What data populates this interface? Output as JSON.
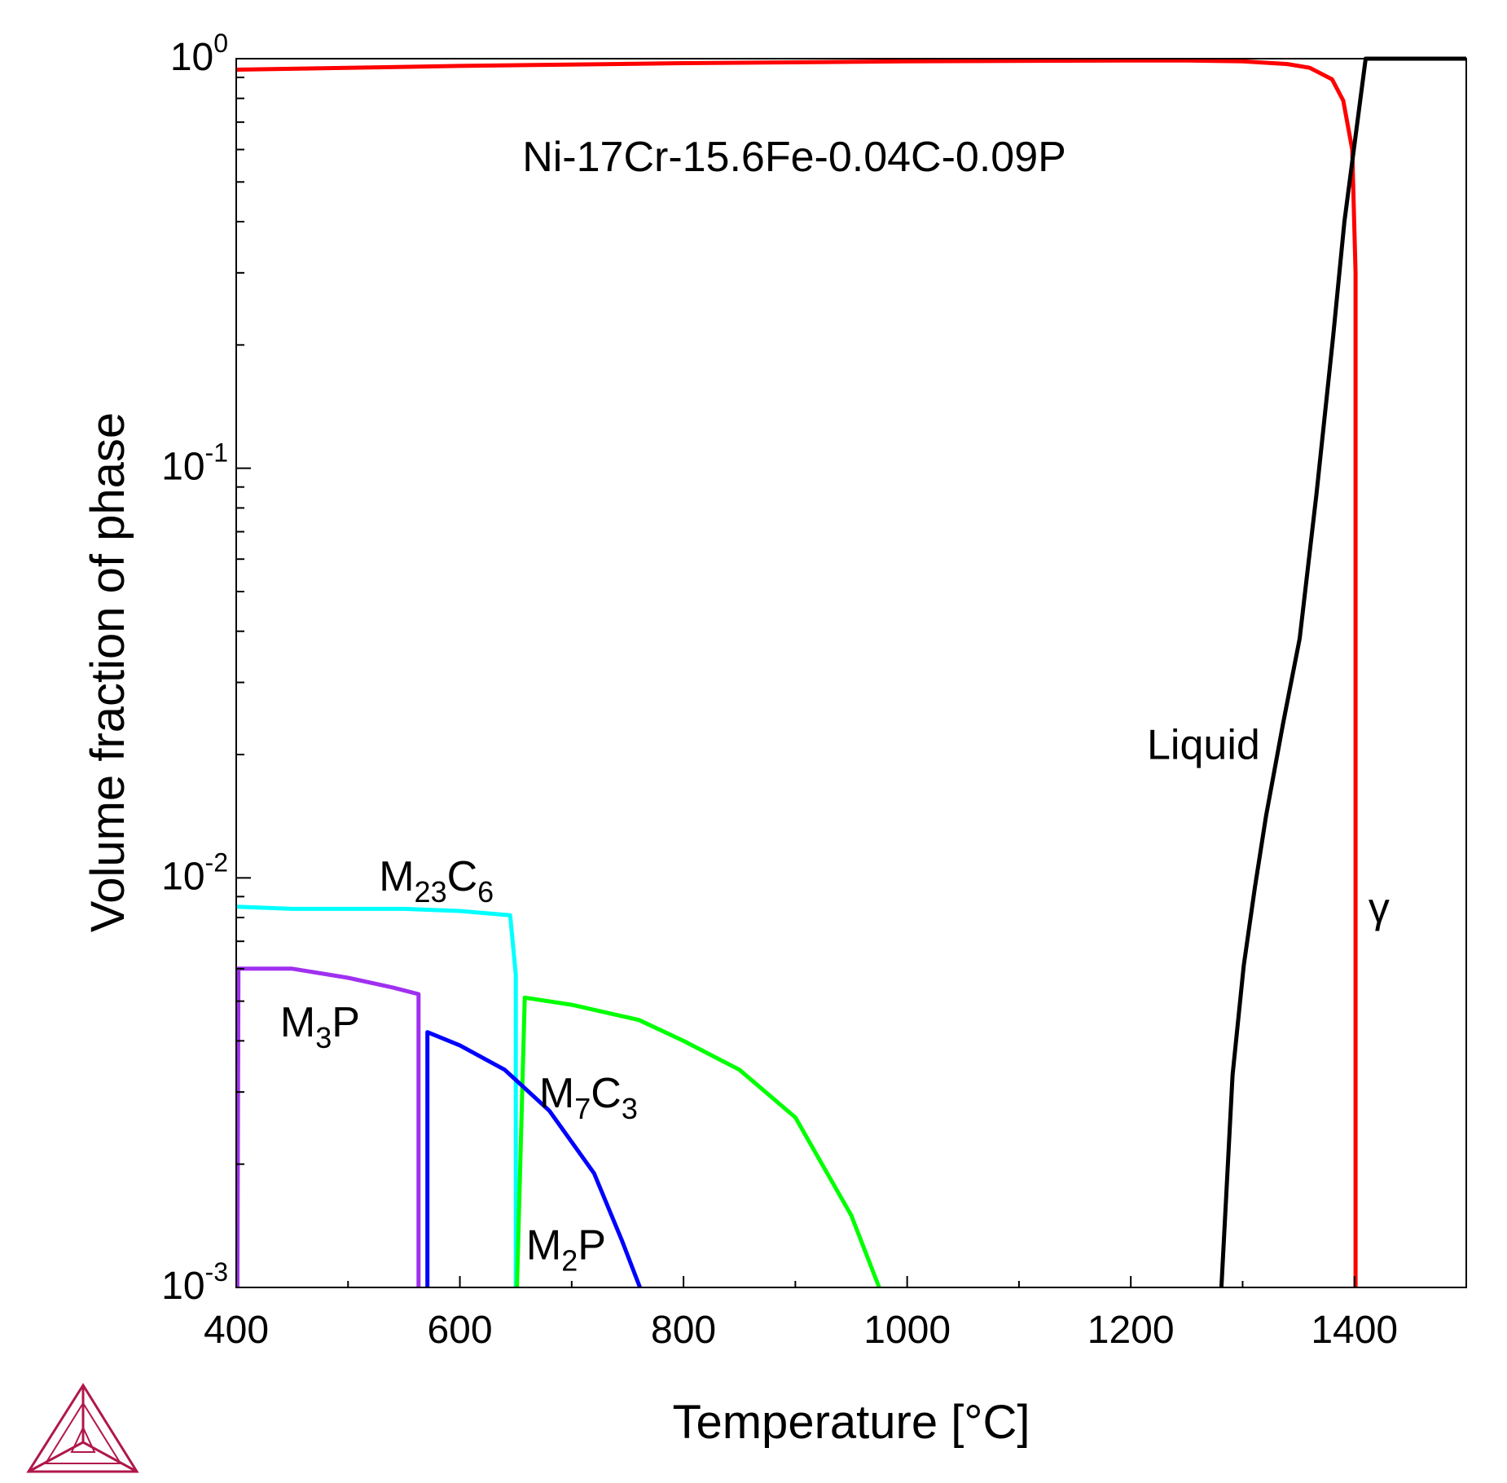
{
  "chart_data": {
    "type": "line",
    "xlabel": "Temperature [°C]",
    "ylabel": "Volume fraction of phase",
    "xlim": [
      400,
      1500
    ],
    "ylim": [
      0.001,
      1
    ],
    "yscale": "log",
    "x_ticks": [
      400,
      600,
      800,
      1000,
      1200,
      1400
    ],
    "y_ticks": [
      {
        "value": 1,
        "base": "10",
        "exp": "0"
      },
      {
        "value": 0.1,
        "base": "10",
        "exp": "-1"
      },
      {
        "value": 0.01,
        "base": "10",
        "exp": "-2"
      },
      {
        "value": 0.001,
        "base": "10",
        "exp": "-3"
      }
    ],
    "grid": false,
    "legend": "none",
    "annotation": "Ni-17Cr-15.6Fe-0.04C-0.09P",
    "series": [
      {
        "label": "γ",
        "color": "#ff0000",
        "points": [
          [
            400,
            0.94
          ],
          [
            600,
            0.96
          ],
          [
            800,
            0.975
          ],
          [
            1000,
            0.985
          ],
          [
            1200,
            0.99
          ],
          [
            1250,
            0.99
          ],
          [
            1300,
            0.985
          ],
          [
            1340,
            0.97
          ],
          [
            1360,
            0.95
          ],
          [
            1380,
            0.89
          ],
          [
            1390,
            0.79
          ],
          [
            1398,
            0.6
          ],
          [
            1401,
            0.3
          ],
          [
            1401,
            0.001
          ]
        ]
      },
      {
        "label": "Liquid",
        "color": "#000000",
        "points": [
          [
            1281,
            0.001
          ],
          [
            1291,
            0.0033
          ],
          [
            1301,
            0.0061
          ],
          [
            1311,
            0.0095
          ],
          [
            1321,
            0.0142
          ],
          [
            1336,
            0.0237
          ],
          [
            1351,
            0.0384
          ],
          [
            1366,
            0.0865
          ],
          [
            1381,
            0.21
          ],
          [
            1391,
            0.4
          ],
          [
            1410,
            1.0
          ],
          [
            1500,
            1.0
          ]
        ]
      },
      {
        "label": "M",
        "sub1": "23",
        "mid": "C",
        "sub2": "6",
        "color": "#00ffff",
        "points": [
          [
            400,
            0.0085
          ],
          [
            450,
            0.0084
          ],
          [
            550,
            0.0084
          ],
          [
            600,
            0.0083
          ],
          [
            645,
            0.0081
          ],
          [
            650,
            0.0058
          ],
          [
            650,
            0.001
          ]
        ]
      },
      {
        "label": "M",
        "sub1": "3",
        "mid": "P",
        "sub2": "",
        "color": "#a030f0",
        "points": [
          [
            401,
            0.001
          ],
          [
            402,
            0.006
          ],
          [
            450,
            0.006
          ],
          [
            500,
            0.0057
          ],
          [
            540,
            0.0054
          ],
          [
            563,
            0.0052
          ],
          [
            563,
            0.001
          ]
        ]
      },
      {
        "label": "M",
        "sub1": "7",
        "mid": "C",
        "sub2": "3",
        "color": "#00ff00",
        "points": [
          [
            651,
            0.001
          ],
          [
            658,
            0.0051
          ],
          [
            700,
            0.0049
          ],
          [
            760,
            0.0045
          ],
          [
            800,
            0.004
          ],
          [
            850,
            0.0034
          ],
          [
            900,
            0.0026
          ],
          [
            950,
            0.0015
          ],
          [
            975,
            0.001
          ]
        ]
      },
      {
        "label": "M",
        "sub1": "2",
        "mid": "P",
        "sub2": "",
        "color": "#0000ff",
        "points": [
          [
            571,
            0.001
          ],
          [
            571,
            0.0042
          ],
          [
            600,
            0.0039
          ],
          [
            640,
            0.0034
          ],
          [
            680,
            0.0027
          ],
          [
            720,
            0.0019
          ],
          [
            745,
            0.0013
          ],
          [
            761,
            0.001
          ]
        ]
      }
    ],
    "labels": [
      {
        "series": 1,
        "x": 1265,
        "y": 0.0195
      },
      {
        "series": 0,
        "x": 1422,
        "y": 0.0078
      },
      {
        "series": 2,
        "x": 579,
        "y": 0.0093
      },
      {
        "series": 3,
        "x": 475,
        "y": 0.0041
      },
      {
        "series": 4,
        "x": 715,
        "y": 0.00275
      },
      {
        "series": 5,
        "x": 695,
        "y": 0.00117
      }
    ]
  }
}
